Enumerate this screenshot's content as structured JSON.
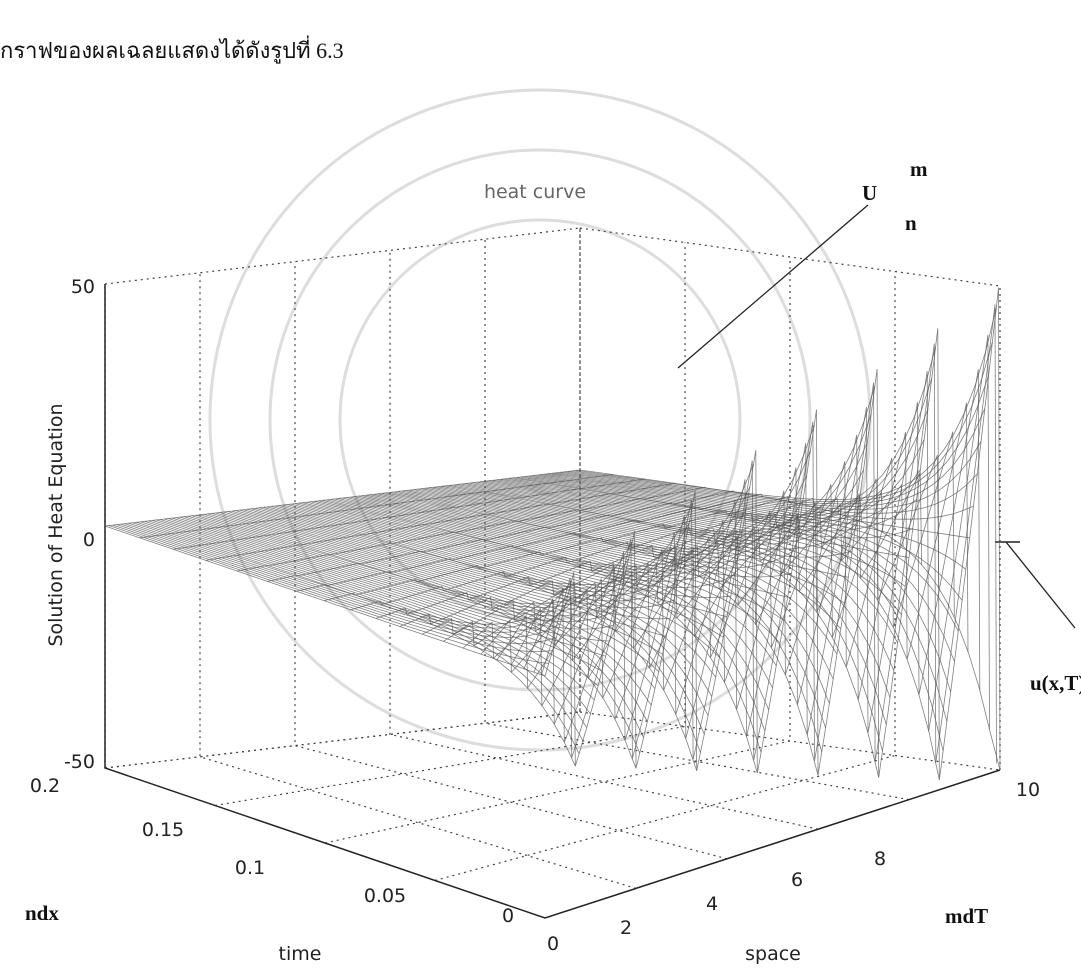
{
  "caption": "กราฟของผลเฉลยแสดงได้ดังรูปที่ 6.3",
  "figure": {
    "title": "heat curve",
    "z_label": "Solution of Heat Equation",
    "time_label": "time",
    "space_label": "space",
    "z_ticks": [
      "50",
      "0",
      "-50"
    ],
    "time_ticks": [
      "0.2",
      "0.15",
      "0.1",
      "0.05",
      "0"
    ],
    "space_ticks": [
      "0",
      "2",
      "4",
      "6",
      "8",
      "10"
    ],
    "annotations": {
      "U": "U",
      "U_sup": "m",
      "U_sub": "n",
      "u_xT": "u(x,T)",
      "ndx": "ndx",
      "mdT": "mdT"
    }
  }
}
